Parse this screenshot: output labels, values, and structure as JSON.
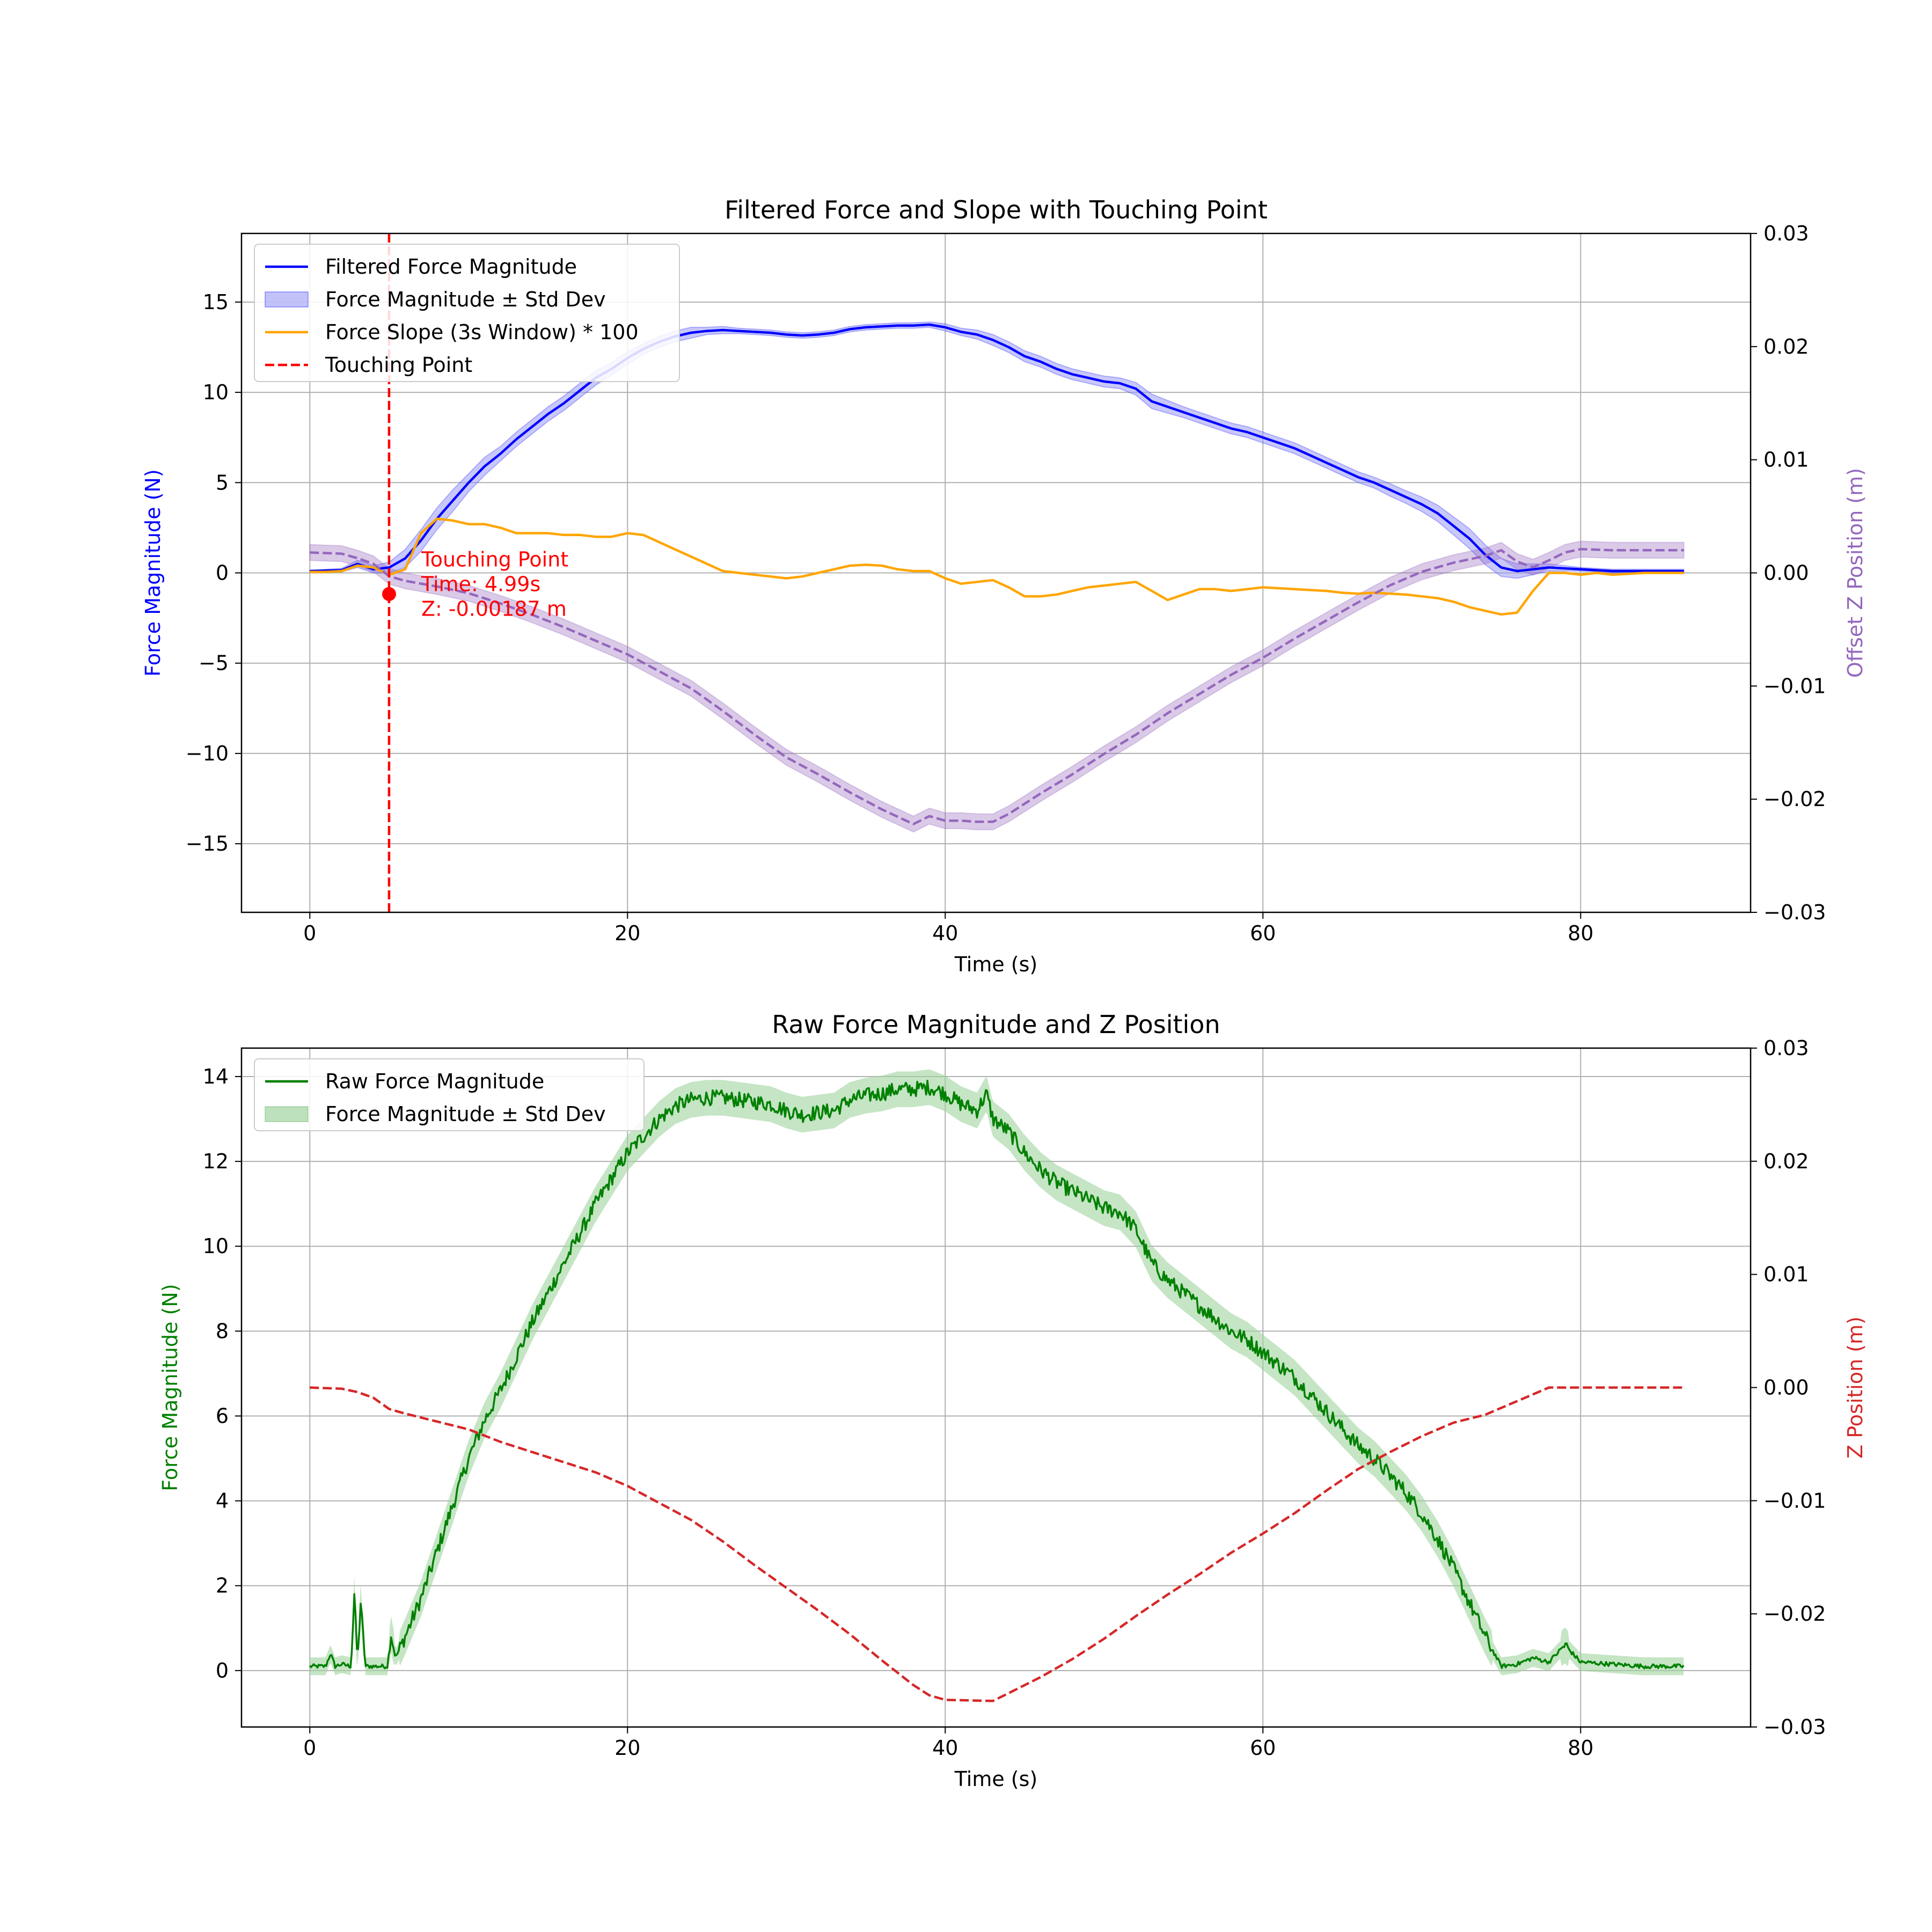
{
  "chart_data": [
    {
      "type": "line",
      "title": "Filtered Force and Slope with Touching Point",
      "xlabel": "Time (s)",
      "ylabel": "Force Magnitude (N)",
      "y2label": "Offset Z Position (m)",
      "xlim": [
        -4.3,
        90.7
      ],
      "ylim": [
        -18.8,
        18.8
      ],
      "y2lim": [
        -0.03,
        0.03
      ],
      "xticks": [
        0,
        20,
        40,
        60,
        80
      ],
      "yticks": [
        -15,
        -10,
        -5,
        0,
        5,
        10,
        15
      ],
      "y2ticks": [
        -0.03,
        -0.02,
        -0.01,
        0.0,
        0.01,
        0.02,
        0.03
      ],
      "xtick_labels": [
        "0",
        "20",
        "40",
        "60",
        "80"
      ],
      "ytick_labels": [
        "−15",
        "−10",
        "−5",
        "0",
        "5",
        "10",
        "15"
      ],
      "y2tick_labels": [
        "−0.03",
        "−0.02",
        "−0.01",
        "0.00",
        "0.01",
        "0.02",
        "0.03"
      ],
      "grid": true,
      "legend_position": "top-left",
      "colors": {
        "force": "#0000ff",
        "band": "#9a9af5",
        "slope": "#ffa500",
        "touch": "#ff0000",
        "z": "#9467bd"
      },
      "series": [
        {
          "name": "Filtered Force Magnitude",
          "axis": "left",
          "x": [
            0,
            2,
            3,
            4,
            5,
            6,
            7,
            8,
            9,
            10,
            11,
            12,
            13,
            14,
            15,
            16,
            17,
            18,
            19,
            20,
            21,
            22,
            23,
            24,
            25,
            26,
            27,
            28,
            29,
            30,
            31,
            32,
            33,
            34,
            35,
            36,
            37,
            38,
            39,
            40,
            41,
            42,
            43,
            44,
            45,
            46,
            47,
            48,
            49,
            50,
            51,
            52,
            53,
            54,
            55,
            56,
            57,
            58,
            59,
            60,
            61,
            62,
            63,
            64,
            65,
            66,
            67,
            68,
            69,
            70,
            71,
            72,
            73,
            74,
            75,
            76,
            77,
            78,
            79,
            80,
            81,
            82,
            83,
            84,
            85,
            86.5
          ],
          "values": [
            0.1,
            0.15,
            0.5,
            0.2,
            0.3,
            0.8,
            1.8,
            3.0,
            4.0,
            5.0,
            5.9,
            6.6,
            7.4,
            8.1,
            8.8,
            9.4,
            10.1,
            10.8,
            11.3,
            11.9,
            12.4,
            12.8,
            13.1,
            13.3,
            13.4,
            13.45,
            13.4,
            13.35,
            13.3,
            13.2,
            13.15,
            13.2,
            13.3,
            13.5,
            13.6,
            13.65,
            13.7,
            13.7,
            13.75,
            13.6,
            13.35,
            13.2,
            12.9,
            12.5,
            12.0,
            11.7,
            11.3,
            11.0,
            10.8,
            10.6,
            10.5,
            10.2,
            9.5,
            9.2,
            8.9,
            8.6,
            8.3,
            8.0,
            7.8,
            7.5,
            7.2,
            6.9,
            6.5,
            6.1,
            5.7,
            5.3,
            5.0,
            4.6,
            4.2,
            3.8,
            3.3,
            2.6,
            1.9,
            1.0,
            0.3,
            0.1,
            0.2,
            0.3,
            0.25,
            0.2,
            0.15,
            0.1,
            0.1,
            0.1,
            0.1,
            0.1
          ]
        },
        {
          "name": "Force Magnitude ± Std Dev",
          "axis": "left",
          "band": true,
          "halfwidth": [
            0.05,
            0.1,
            0.2,
            0.2,
            0.3,
            0.5,
            0.6,
            0.6,
            0.6,
            0.5,
            0.5,
            0.4,
            0.4,
            0.4,
            0.4,
            0.4,
            0.4,
            0.4,
            0.35,
            0.35,
            0.3,
            0.3,
            0.3,
            0.3,
            0.2,
            0.2,
            0.15,
            0.15,
            0.15,
            0.15,
            0.15,
            0.15,
            0.15,
            0.15,
            0.15,
            0.15,
            0.15,
            0.15,
            0.15,
            0.2,
            0.2,
            0.25,
            0.3,
            0.3,
            0.3,
            0.3,
            0.3,
            0.3,
            0.3,
            0.3,
            0.3,
            0.35,
            0.4,
            0.35,
            0.3,
            0.3,
            0.3,
            0.3,
            0.3,
            0.3,
            0.3,
            0.3,
            0.3,
            0.3,
            0.3,
            0.3,
            0.3,
            0.35,
            0.35,
            0.4,
            0.45,
            0.5,
            0.55,
            0.55,
            0.5,
            0.4,
            0.3,
            0.2,
            0.15,
            0.1,
            0.1,
            0.1,
            0.1,
            0.1,
            0.1,
            0.1
          ]
        },
        {
          "name": "Force Slope (3s Window) * 100",
          "axis": "left",
          "x": [
            0,
            1,
            2,
            3,
            4,
            5,
            6,
            7,
            8,
            9,
            10,
            11,
            12,
            13,
            14,
            15,
            16,
            17,
            18,
            19,
            20,
            21,
            22,
            23,
            24,
            25,
            26,
            27,
            28,
            29,
            30,
            31,
            32,
            33,
            34,
            35,
            36,
            37,
            38,
            39,
            40,
            41,
            42,
            43,
            44,
            45,
            46,
            47,
            48,
            49,
            50,
            51,
            52,
            53,
            54,
            55,
            56,
            57,
            58,
            59,
            60,
            61,
            62,
            63,
            64,
            65,
            66,
            67,
            68,
            69,
            70,
            71,
            72,
            73,
            74,
            75,
            76,
            77,
            78,
            79,
            80,
            81,
            82,
            83,
            84,
            85,
            86.5
          ],
          "values": [
            0.05,
            0.05,
            0.1,
            0.4,
            0.3,
            -0.1,
            0.2,
            2.2,
            3.0,
            2.9,
            2.7,
            2.7,
            2.5,
            2.2,
            2.2,
            2.2,
            2.1,
            2.1,
            2.0,
            2.0,
            2.2,
            2.1,
            1.7,
            1.3,
            0.9,
            0.5,
            0.1,
            0.0,
            -0.1,
            -0.2,
            -0.3,
            -0.2,
            0.0,
            0.2,
            0.4,
            0.45,
            0.4,
            0.2,
            0.1,
            0.1,
            -0.3,
            -0.6,
            -0.5,
            -0.4,
            -0.8,
            -1.3,
            -1.3,
            -1.2,
            -1.0,
            -0.8,
            -0.7,
            -0.6,
            -0.5,
            -1.0,
            -1.5,
            -1.2,
            -0.9,
            -0.9,
            -1.0,
            -0.9,
            -0.8,
            -0.85,
            -0.9,
            -0.95,
            -1.0,
            -1.1,
            -1.15,
            -1.1,
            -1.15,
            -1.2,
            -1.3,
            -1.4,
            -1.6,
            -1.9,
            -2.1,
            -2.3,
            -2.2,
            -1.0,
            0.0,
            0.0,
            -0.1,
            0.0,
            -0.1,
            -0.05,
            0.0,
            0.0,
            0.0
          ]
        },
        {
          "name": "Touching Point",
          "axis": "left",
          "vline_x": 4.99
        },
        {
          "axis": "right",
          "x": [
            0,
            2,
            3,
            4,
            5,
            6,
            8,
            10,
            12,
            14,
            16,
            18,
            20,
            22,
            24,
            26,
            28,
            30,
            32,
            34,
            36,
            38,
            39,
            40,
            41,
            42,
            43,
            44,
            46,
            48,
            50,
            52,
            54,
            56,
            58,
            60,
            62,
            64,
            66,
            68,
            70,
            72,
            74,
            75,
            76,
            77,
            78,
            79,
            80,
            82,
            84,
            86.5
          ],
          "values": [
            0.0018,
            0.0017,
            0.0013,
            0.0008,
            -0.0003,
            -0.0007,
            -0.0012,
            -0.0018,
            -0.0027,
            -0.0037,
            -0.0048,
            -0.006,
            -0.0072,
            -0.0087,
            -0.0102,
            -0.0122,
            -0.0143,
            -0.0163,
            -0.0178,
            -0.0194,
            -0.0209,
            -0.0222,
            -0.0215,
            -0.0219,
            -0.0219,
            -0.022,
            -0.022,
            -0.0213,
            -0.0195,
            -0.0178,
            -0.016,
            -0.0143,
            -0.0124,
            -0.0107,
            -0.009,
            -0.0075,
            -0.0058,
            -0.0042,
            -0.0026,
            -0.0011,
            0.0001,
            0.0009,
            0.0015,
            0.002,
            0.001,
            0.0005,
            0.0011,
            0.0018,
            0.0021,
            0.002,
            0.002,
            0.002
          ],
          "halfwidth": 0.0007
        }
      ],
      "annotation": {
        "x": 4.99,
        "z": -0.00187,
        "label": "Touching Point",
        "time_text": "Time: 4.99s",
        "z_text": "Z: -0.00187 m"
      }
    },
    {
      "type": "line",
      "title": "Raw Force Magnitude and Z Position",
      "xlabel": "Time (s)",
      "ylabel": "Force Magnitude (N)",
      "y2label": "Z Position (m)",
      "xlim": [
        -4.3,
        90.7
      ],
      "ylim": [
        -1.33,
        14.67
      ],
      "y2lim": [
        -0.03,
        0.03
      ],
      "xticks": [
        0,
        20,
        40,
        60,
        80
      ],
      "yticks": [
        0,
        2,
        4,
        6,
        8,
        10,
        12,
        14
      ],
      "y2ticks": [
        -0.03,
        -0.02,
        -0.01,
        0.0,
        0.01,
        0.02,
        0.03
      ],
      "xtick_labels": [
        "0",
        "20",
        "40",
        "60",
        "80"
      ],
      "ytick_labels": [
        "0",
        "2",
        "4",
        "6",
        "8",
        "10",
        "12",
        "14"
      ],
      "y2tick_labels": [
        "−0.03",
        "−0.02",
        "−0.01",
        "0.00",
        "0.01",
        "0.02",
        "0.03"
      ],
      "grid": true,
      "legend_position": "top-left",
      "colors": {
        "force": "#008000",
        "band": "#9fd49f",
        "z": "#d62728"
      },
      "series": [
        {
          "name": "Raw Force Magnitude",
          "axis": "left",
          "x": [
            0,
            1,
            1.3,
            1.6,
            2,
            2.6,
            2.8,
            3.0,
            3.2,
            3.5,
            4,
            4.9,
            5.1,
            5.4,
            6,
            7,
            8,
            9,
            10,
            11,
            12,
            13,
            14,
            15,
            16,
            17,
            18,
            19,
            20,
            21,
            22,
            23,
            24,
            25,
            26,
            27,
            28,
            29,
            30,
            31,
            32,
            33,
            34,
            35,
            36,
            37,
            38,
            39,
            40,
            41,
            42,
            42.6,
            43,
            44,
            45,
            46,
            47,
            48,
            49,
            50,
            51,
            52,
            53,
            54,
            55,
            56,
            57,
            58,
            59,
            60,
            61,
            62,
            63,
            64,
            65,
            66,
            67,
            68,
            69,
            70,
            71,
            72,
            73,
            74,
            75,
            76,
            77,
            78,
            79,
            80,
            82,
            84,
            86.5
          ],
          "values": [
            0.1,
            0.1,
            0.4,
            0.1,
            0.15,
            0.1,
            1.8,
            0.2,
            1.6,
            0.1,
            0.1,
            0.1,
            0.9,
            0.3,
            0.8,
            1.7,
            2.8,
            3.9,
            5.0,
            5.9,
            6.6,
            7.4,
            8.2,
            8.9,
            9.6,
            10.3,
            11.0,
            11.6,
            12.2,
            12.6,
            13.0,
            13.3,
            13.45,
            13.5,
            13.5,
            13.45,
            13.4,
            13.35,
            13.2,
            13.1,
            13.15,
            13.2,
            13.45,
            13.55,
            13.6,
            13.7,
            13.7,
            13.75,
            13.6,
            13.35,
            13.2,
            13.6,
            13.0,
            12.7,
            12.2,
            11.8,
            11.5,
            11.3,
            11.1,
            10.9,
            10.8,
            10.4,
            9.6,
            9.2,
            8.9,
            8.6,
            8.3,
            8.0,
            7.8,
            7.5,
            7.2,
            6.9,
            6.5,
            6.1,
            5.7,
            5.3,
            5.0,
            4.6,
            4.2,
            3.7,
            3.1,
            2.4,
            1.6,
            0.8,
            0.1,
            0.15,
            0.3,
            0.2,
            0.6,
            0.2,
            0.15,
            0.1,
            0.1
          ]
        },
        {
          "name": "Force Magnitude ± Std Dev",
          "axis": "left",
          "band": true,
          "halfwidth": 0.3
        },
        {
          "axis": "right",
          "x": [
            0,
            2,
            3,
            4,
            5,
            6,
            8,
            10,
            12,
            14,
            16,
            18,
            20,
            22,
            24,
            26,
            28,
            30,
            32,
            34,
            36,
            38,
            39,
            40,
            43,
            44,
            46,
            48,
            50,
            52,
            54,
            56,
            58,
            60,
            62,
            64,
            66,
            68,
            70,
            72,
            74,
            75,
            76,
            77,
            78,
            79,
            80,
            82,
            84,
            86.5
          ],
          "values": [
            0.0,
            -0.0001,
            -0.0004,
            -0.0009,
            -0.0019,
            -0.0023,
            -0.003,
            -0.0037,
            -0.0048,
            -0.0057,
            -0.0066,
            -0.0075,
            -0.0087,
            -0.0102,
            -0.0117,
            -0.0136,
            -0.0157,
            -0.0177,
            -0.0197,
            -0.0218,
            -0.0241,
            -0.0263,
            -0.0272,
            -0.0276,
            -0.0277,
            -0.027,
            -0.0256,
            -0.024,
            -0.0222,
            -0.0202,
            -0.0183,
            -0.0165,
            -0.0146,
            -0.0129,
            -0.0111,
            -0.0091,
            -0.0072,
            -0.0057,
            -0.0043,
            -0.0031,
            -0.0024,
            -0.0018,
            -0.0012,
            -0.0006,
            0.0,
            0.0,
            0.0,
            0.0,
            0.0,
            0.0
          ]
        }
      ]
    }
  ]
}
